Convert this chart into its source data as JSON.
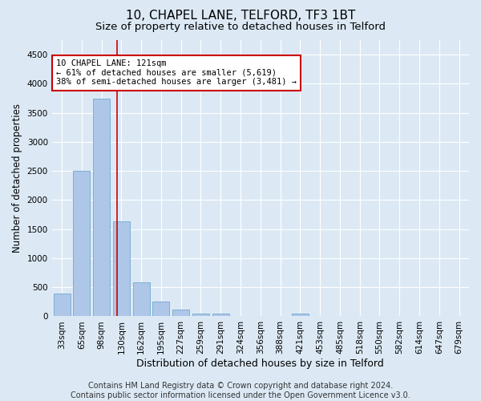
{
  "title": "10, CHAPEL LANE, TELFORD, TF3 1BT",
  "subtitle": "Size of property relative to detached houses in Telford",
  "xlabel": "Distribution of detached houses by size in Telford",
  "ylabel": "Number of detached properties",
  "bar_color": "#aec6e8",
  "bar_edge_color": "#7ab0d4",
  "categories": [
    "33sqm",
    "65sqm",
    "98sqm",
    "130sqm",
    "162sqm",
    "195sqm",
    "227sqm",
    "259sqm",
    "291sqm",
    "324sqm",
    "356sqm",
    "388sqm",
    "421sqm",
    "453sqm",
    "485sqm",
    "518sqm",
    "550sqm",
    "582sqm",
    "614sqm",
    "647sqm",
    "679sqm"
  ],
  "values": [
    390,
    2500,
    3740,
    1630,
    590,
    250,
    110,
    50,
    45,
    0,
    0,
    0,
    45,
    0,
    0,
    0,
    0,
    0,
    0,
    0,
    0
  ],
  "ylim": [
    0,
    4750
  ],
  "yticks": [
    0,
    500,
    1000,
    1500,
    2000,
    2500,
    3000,
    3500,
    4000,
    4500
  ],
  "vline_x": 2.78,
  "annotation_text": "10 CHAPEL LANE: 121sqm\n← 61% of detached houses are smaller (5,619)\n38% of semi-detached houses are larger (3,481) →",
  "annotation_box_color": "#ffffff",
  "annotation_box_edge_color": "#cc0000",
  "footer_line1": "Contains HM Land Registry data © Crown copyright and database right 2024.",
  "footer_line2": "Contains public sector information licensed under the Open Government Licence v3.0.",
  "background_color": "#dce9f5",
  "plot_bg_color": "#dce9f5",
  "grid_color": "#ffffff",
  "vline_color": "#cc0000",
  "title_fontsize": 11,
  "subtitle_fontsize": 9.5,
  "ylabel_fontsize": 8.5,
  "xlabel_fontsize": 9,
  "tick_fontsize": 7.5,
  "footer_fontsize": 7
}
